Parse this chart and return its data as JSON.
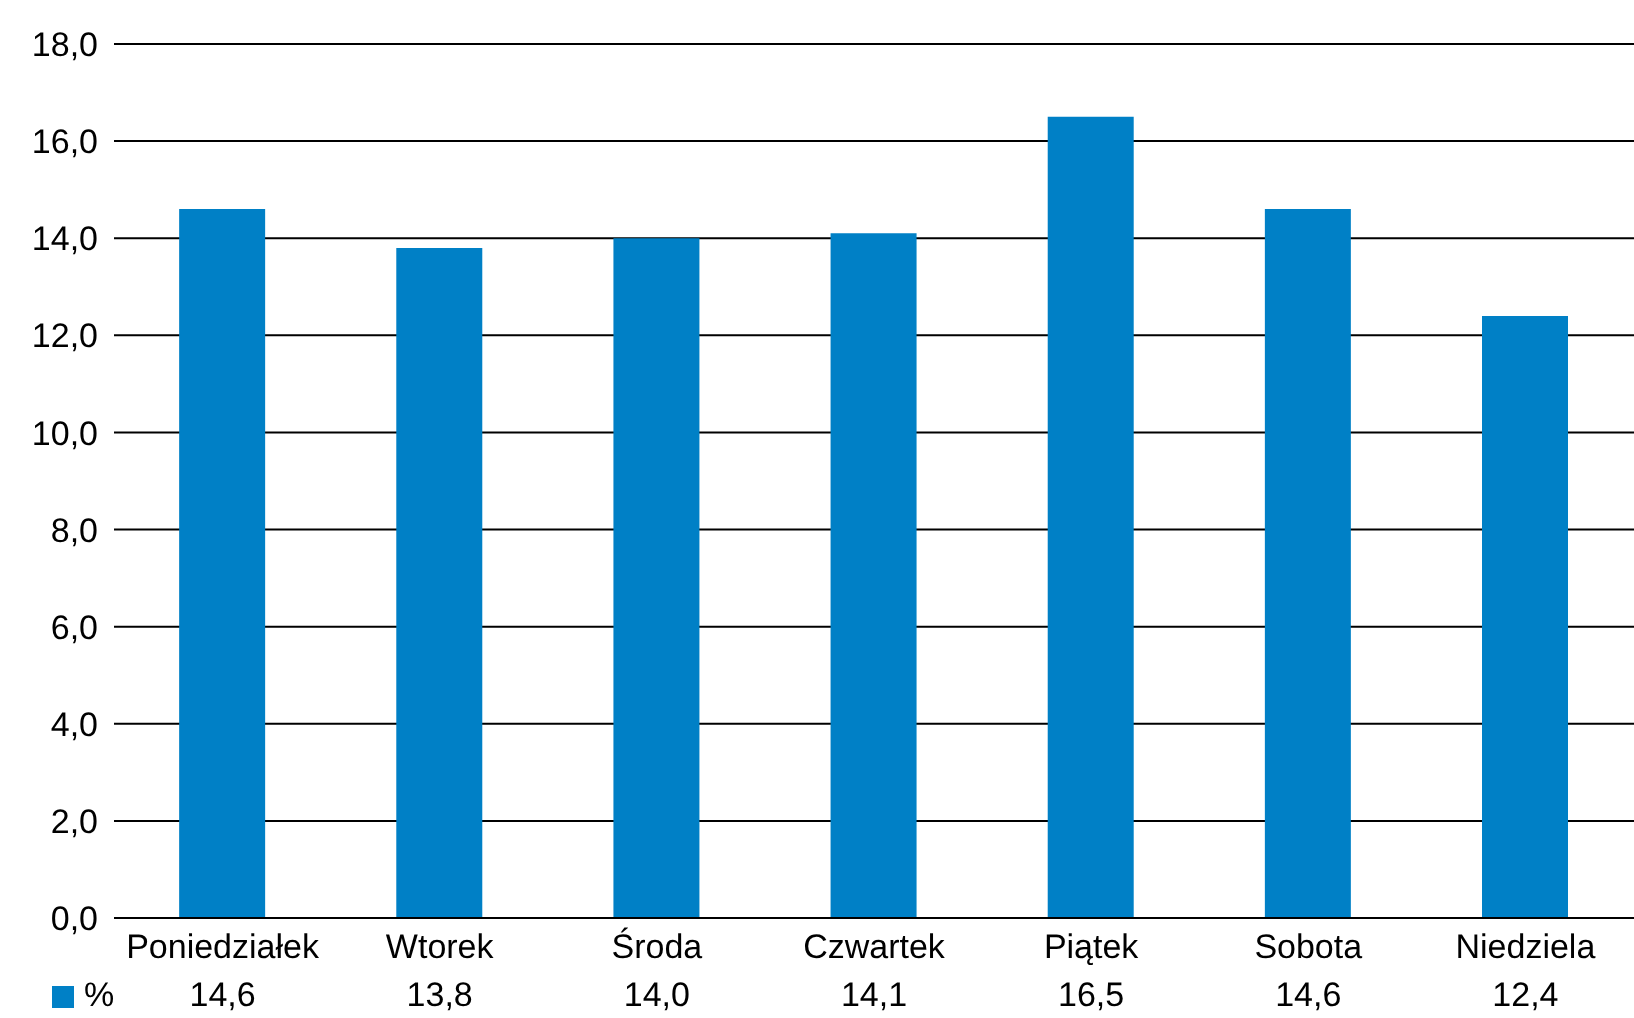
{
  "chart_data": {
    "type": "bar",
    "categories": [
      "Poniedziałek",
      "Wtorek",
      "Środa",
      "Czwartek",
      "Piątek",
      "Sobota",
      "Niedziela"
    ],
    "series": [
      {
        "name": "%",
        "color": "#0080c6",
        "values": [
          14.6,
          13.8,
          14.0,
          14.1,
          16.5,
          14.6,
          12.4
        ],
        "value_labels": [
          "14,6",
          "13,8",
          "14,0",
          "14,1",
          "16,5",
          "14,6",
          "12,4"
        ]
      }
    ],
    "ylim": [
      0,
      18
    ],
    "yticks": [
      {
        "value": 0,
        "label": "0,0"
      },
      {
        "value": 2,
        "label": "2,0"
      },
      {
        "value": 4,
        "label": "4,0"
      },
      {
        "value": 6,
        "label": "6,0"
      },
      {
        "value": 8,
        "label": "8,0"
      },
      {
        "value": 10,
        "label": "10,0"
      },
      {
        "value": 12,
        "label": "12,0"
      },
      {
        "value": 14,
        "label": "14,0"
      },
      {
        "value": 16,
        "label": "16,0"
      },
      {
        "value": 18,
        "label": "18,0"
      }
    ],
    "grid": "y",
    "legend": "bottom"
  }
}
